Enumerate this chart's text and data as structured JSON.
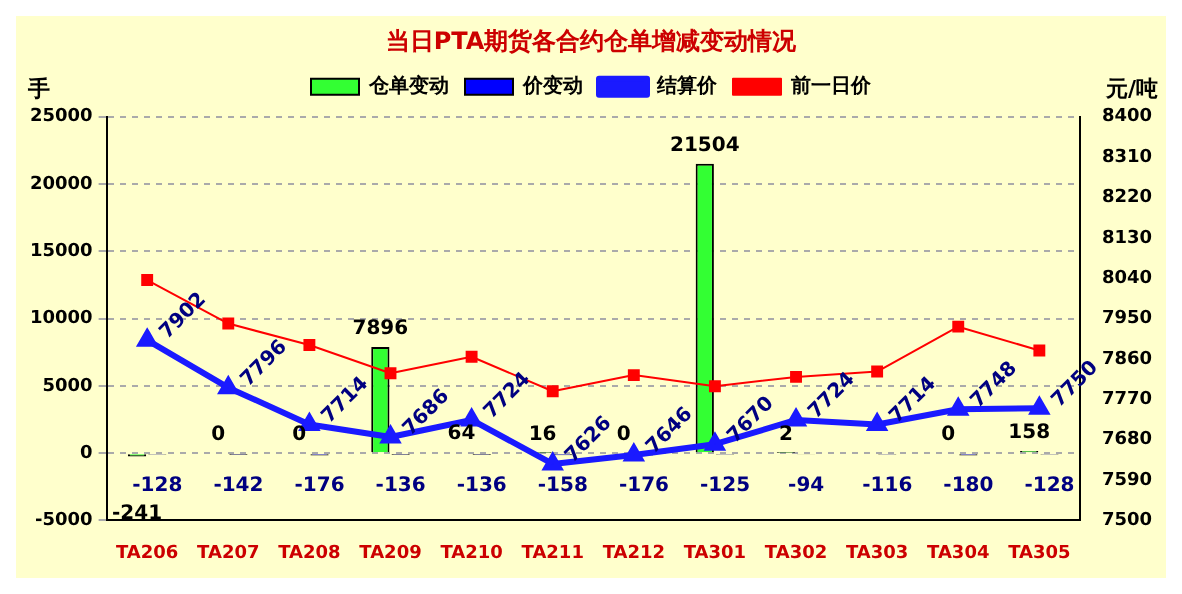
{
  "chart_data": {
    "type": "bar",
    "title": "当日PTA期货各合约仓单增减变动情况",
    "ylabel": "手",
    "y2label": "元/吨",
    "categories": [
      "TA206",
      "TA207",
      "TA208",
      "TA209",
      "TA210",
      "TA211",
      "TA212",
      "TA301",
      "TA302",
      "TA303",
      "TA304",
      "TA305"
    ],
    "series": [
      {
        "name": "仓单变动",
        "color": "#33ff33",
        "values": [
          -241,
          0,
          0,
          7896,
          64,
          16,
          0,
          21504,
          2,
          0,
          0,
          158
        ],
        "value_labels": [
          "-241",
          "0",
          "0",
          "7896",
          "64",
          "16",
          "0",
          "21504",
          "2",
          null,
          "0",
          "158"
        ]
      },
      {
        "name": "价变动",
        "color": "#0000ff",
        "values": [
          -128,
          -142,
          -176,
          -136,
          -136,
          -158,
          -176,
          -125,
          -94,
          -116,
          -180,
          -128
        ],
        "value_labels": [
          "-128",
          "-142",
          "-176",
          "-136",
          "-136",
          "-158",
          "-176",
          "-125",
          "-94",
          "-116",
          "-180",
          "-128"
        ]
      },
      {
        "name": "结算价",
        "type": "line",
        "axis": "y2",
        "color": "#1a1aff",
        "marker": "triangle",
        "values": [
          7902,
          7796,
          7714,
          7686,
          7724,
          7626,
          7646,
          7670,
          7724,
          7714,
          7748,
          7750
        ],
        "value_labels": [
          "7902",
          "7796",
          "7714",
          "7686",
          "7724",
          "7626",
          "7646",
          "7670",
          "7724",
          "7714",
          "7748",
          "7750"
        ]
      },
      {
        "name": "前一日价",
        "type": "line",
        "axis": "y2",
        "color": "#ff0000",
        "marker": "square",
        "values": [
          8036,
          7939,
          7891,
          7828,
          7865,
          7788,
          7824,
          7799,
          7820,
          7832,
          7932,
          7879
        ]
      }
    ],
    "ylim": [
      -5000,
      25000
    ],
    "yticks": [
      -5000,
      0,
      5000,
      10000,
      15000,
      20000,
      25000
    ],
    "y2lim": [
      7500,
      8400
    ],
    "y2ticks": [
      7500,
      7590,
      7680,
      7770,
      7860,
      7950,
      8040,
      8130,
      8220,
      8310,
      8400
    ],
    "grid": "y",
    "legend": "top"
  }
}
